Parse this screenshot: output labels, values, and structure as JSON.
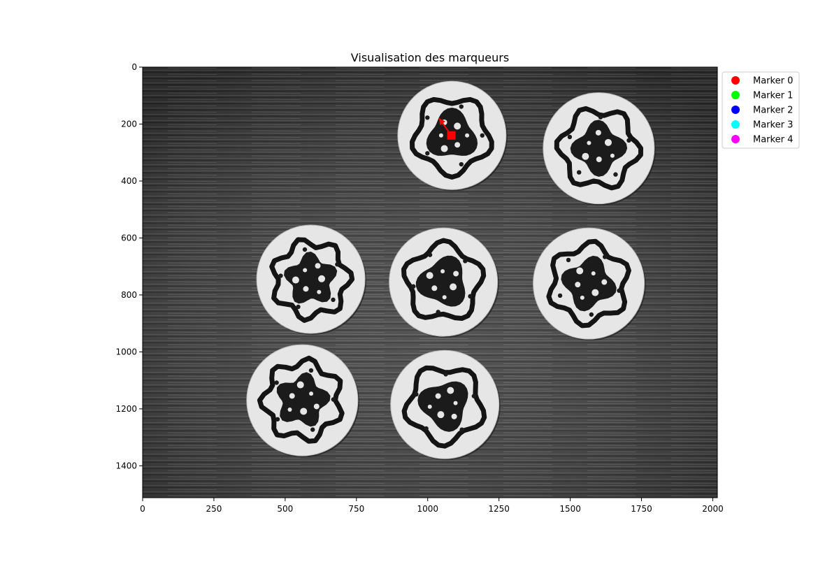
{
  "chart_data": {
    "type": "scatter",
    "title": "Visualisation des marqueurs",
    "xlabel": "",
    "ylabel": "",
    "xlim": [
      0,
      2016
    ],
    "ylim": [
      1512,
      0
    ],
    "x_ticks": [
      0,
      250,
      500,
      750,
      1000,
      1250,
      1500,
      1750,
      2000
    ],
    "y_ticks": [
      0,
      200,
      400,
      600,
      800,
      1000,
      1200,
      1400
    ],
    "x_tick_labels": [
      "0",
      "250",
      "500",
      "750",
      "1000",
      "1250",
      "1500",
      "1750",
      "2000"
    ],
    "y_tick_labels": [
      "0",
      "200",
      "400",
      "600",
      "800",
      "1000",
      "1200",
      "1400"
    ],
    "legend_position": "outside-top-right",
    "series": [
      {
        "name": "Marker 0",
        "color": "#ff0000"
      },
      {
        "name": "Marker 1",
        "color": "#00ff00"
      },
      {
        "name": "Marker 2",
        "color": "#0000ff"
      },
      {
        "name": "Marker 3",
        "color": "#00ffff"
      },
      {
        "name": "Marker 4",
        "color": "#ff00ff"
      }
    ],
    "detections": [
      {
        "marker": 0,
        "center": [
          1083,
          240
        ],
        "arrow_tip": [
          1040,
          180
        ],
        "color": "#ff0000"
      }
    ],
    "background_image": "grayscale photo of a dark wooden table with seven round white markers bearing black blob patterns",
    "discs": [
      {
        "cx": 1085,
        "cy": 240,
        "r": 190
      },
      {
        "cx": 1600,
        "cy": 285,
        "r": 195
      },
      {
        "cx": 590,
        "cy": 745,
        "r": 190
      },
      {
        "cx": 1055,
        "cy": 755,
        "r": 190
      },
      {
        "cx": 1565,
        "cy": 760,
        "r": 195
      },
      {
        "cx": 560,
        "cy": 1170,
        "r": 195
      },
      {
        "cx": 1060,
        "cy": 1185,
        "r": 190
      }
    ]
  }
}
